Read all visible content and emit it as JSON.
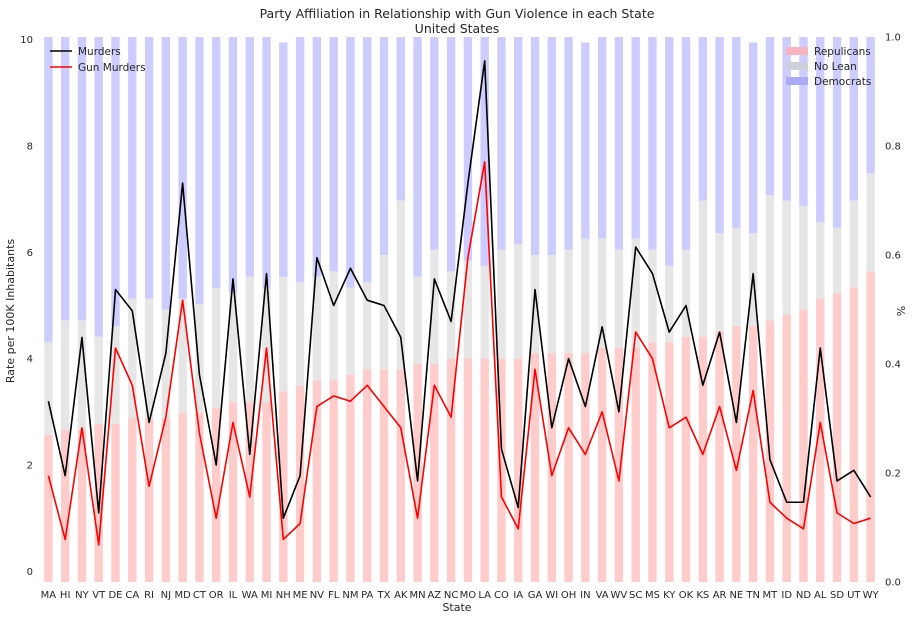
{
  "chart_data": {
    "type": "bar+line",
    "title": "Party Affiliation in Relationship with Gun Violence in each State",
    "subtitle": "United States",
    "xlabel": "State",
    "ylabel": "Rate per 100K Inhabitants",
    "y2label": "%",
    "ylim": [
      -0.2,
      10.05
    ],
    "y2lim": [
      0.0,
      1.0
    ],
    "yticks": [
      "0",
      "2",
      "4",
      "6",
      "8",
      "10"
    ],
    "y2ticks": [
      "0.0",
      "0.2",
      "0.4",
      "0.6",
      "0.8",
      "1.0"
    ],
    "grid": false,
    "categories": [
      "MA",
      "HI",
      "NY",
      "VT",
      "DE",
      "CA",
      "RI",
      "NJ",
      "MD",
      "CT",
      "OR",
      "IL",
      "WA",
      "MI",
      "NH",
      "ME",
      "NV",
      "FL",
      "NM",
      "PA",
      "TX",
      "AK",
      "MN",
      "AZ",
      "NC",
      "MO",
      "LA",
      "CO",
      "IA",
      "GA",
      "WI",
      "OH",
      "IN",
      "VA",
      "WV",
      "SC",
      "MS",
      "KY",
      "OK",
      "KS",
      "AR",
      "NE",
      "TN",
      "MT",
      "ID",
      "ND",
      "AL",
      "SD",
      "UT",
      "WY"
    ],
    "bar_series": [
      {
        "name": "Repulicans",
        "color": "#ffcccc",
        "values": [
          0.27,
          0.28,
          0.28,
          0.29,
          0.29,
          0.3,
          0.3,
          0.3,
          0.31,
          0.31,
          0.32,
          0.33,
          0.33,
          0.33,
          0.35,
          0.36,
          0.37,
          0.37,
          0.38,
          0.39,
          0.39,
          0.39,
          0.4,
          0.4,
          0.41,
          0.41,
          0.41,
          0.41,
          0.41,
          0.42,
          0.42,
          0.42,
          0.42,
          0.43,
          0.43,
          0.43,
          0.44,
          0.44,
          0.45,
          0.45,
          0.46,
          0.47,
          0.47,
          0.48,
          0.49,
          0.5,
          0.52,
          0.53,
          0.54,
          0.57
        ]
      },
      {
        "name": "No Lean",
        "color": "#e6e6e6",
        "values": [
          0.17,
          0.2,
          0.2,
          0.16,
          0.18,
          0.22,
          0.22,
          0.2,
          0.21,
          0.2,
          0.22,
          0.2,
          0.23,
          0.21,
          0.21,
          0.19,
          0.19,
          0.2,
          0.16,
          0.16,
          0.21,
          0.31,
          0.16,
          0.21,
          0.16,
          0.18,
          0.17,
          0.2,
          0.21,
          0.18,
          0.18,
          0.19,
          0.21,
          0.2,
          0.18,
          0.2,
          0.17,
          0.14,
          0.16,
          0.25,
          0.18,
          0.18,
          0.17,
          0.23,
          0.21,
          0.19,
          0.14,
          0.12,
          0.16,
          0.18
        ]
      },
      {
        "name": "Democrats",
        "color": "#ccccff",
        "values": [
          0.56,
          0.52,
          0.52,
          0.55,
          0.53,
          0.48,
          0.48,
          0.5,
          0.48,
          0.49,
          0.46,
          0.47,
          0.44,
          0.46,
          0.43,
          0.45,
          0.44,
          0.43,
          0.46,
          0.45,
          0.4,
          0.3,
          0.44,
          0.39,
          0.43,
          0.41,
          0.42,
          0.39,
          0.38,
          0.4,
          0.4,
          0.39,
          0.36,
          0.37,
          0.39,
          0.37,
          0.39,
          0.42,
          0.39,
          0.3,
          0.36,
          0.35,
          0.35,
          0.29,
          0.3,
          0.31,
          0.34,
          0.35,
          0.3,
          0.25
        ]
      }
    ],
    "line_series": [
      {
        "name": "Murders",
        "color": "#000000",
        "values": [
          3.2,
          1.8,
          4.4,
          1.1,
          5.3,
          4.9,
          2.8,
          4.1,
          7.3,
          3.7,
          2.0,
          5.5,
          2.2,
          5.6,
          1.0,
          1.8,
          5.9,
          5.0,
          5.7,
          5.1,
          5.0,
          4.4,
          1.7,
          5.5,
          4.7,
          7.3,
          9.6,
          2.3,
          1.2,
          5.3,
          2.7,
          4.0,
          3.1,
          4.6,
          3.0,
          6.1,
          5.6,
          4.5,
          5.0,
          3.5,
          4.5,
          2.8,
          5.6,
          2.1,
          1.3,
          1.3,
          4.2,
          1.7,
          1.9,
          1.4
        ]
      },
      {
        "name": "Gun Murders",
        "color": "#ff0000",
        "values": [
          1.8,
          0.6,
          2.7,
          0.5,
          4.2,
          3.5,
          1.6,
          2.9,
          5.1,
          2.6,
          1.0,
          2.8,
          1.4,
          4.2,
          0.6,
          0.9,
          3.1,
          3.3,
          3.2,
          3.5,
          3.1,
          2.7,
          1.0,
          3.5,
          2.9,
          5.9,
          7.7,
          1.4,
          0.8,
          3.8,
          1.8,
          2.7,
          2.2,
          3.0,
          1.7,
          4.5,
          4.0,
          2.7,
          2.9,
          2.2,
          3.1,
          1.9,
          3.4,
          1.3,
          1.0,
          0.8,
          2.8,
          1.1,
          0.9,
          1.0
        ]
      }
    ]
  },
  "legends": {
    "left": [
      "Murders",
      "Gun Murders"
    ],
    "right": [
      "Repulicans",
      "No Lean",
      "Democrats"
    ]
  }
}
